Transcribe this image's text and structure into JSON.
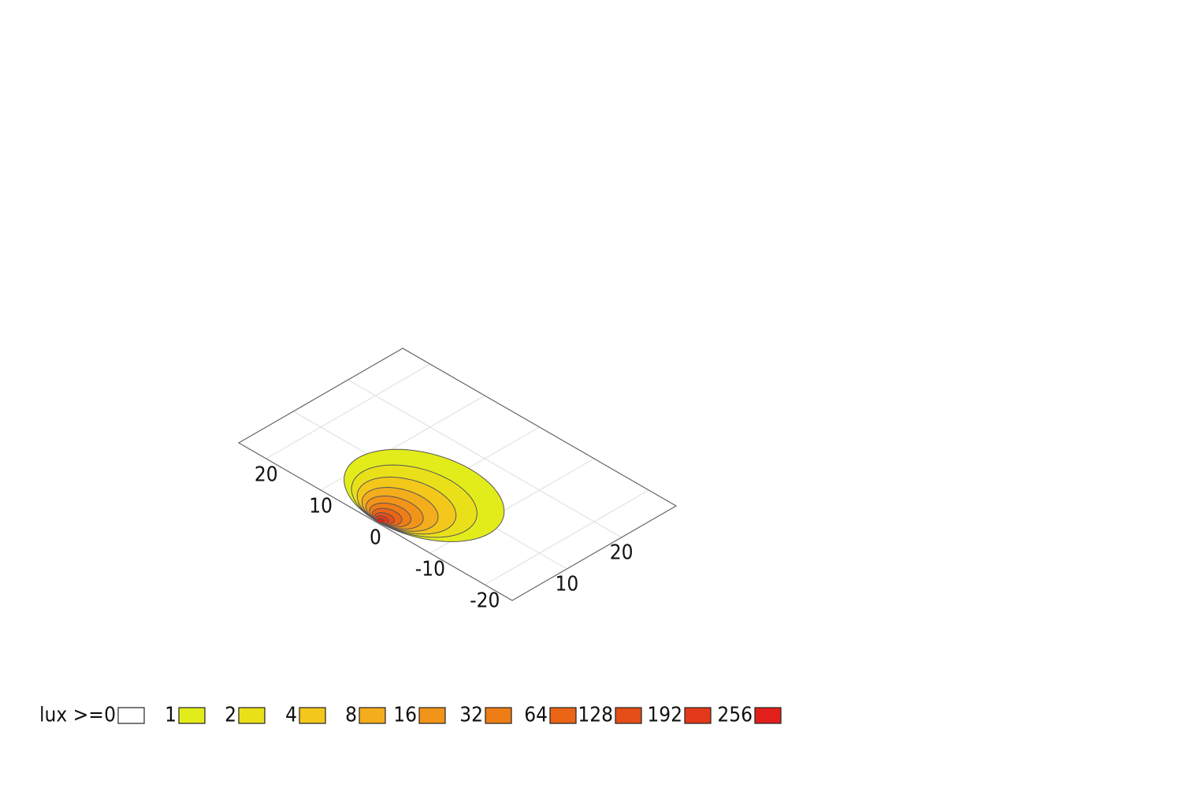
{
  "chart_data": {
    "type": "contour",
    "xlim": [
      0,
      30
    ],
    "ylim": [
      -25,
      25
    ],
    "xticks": [
      10,
      20
    ],
    "yticks": [
      -20,
      -10,
      0,
      10,
      20
    ],
    "grid": true,
    "legend_title": "lux >=",
    "levels": [
      {
        "value": 0,
        "color": "#ffffff"
      },
      {
        "value": 1,
        "color": "#e3ec1b",
        "region": {
          "cx": 8.6,
          "cy": -0.3,
          "rx": 8.4,
          "ry": 12
        }
      },
      {
        "value": 2,
        "color": "#eae01a",
        "region": {
          "cx": 6.8,
          "cy": -0.3,
          "rx": 6.6,
          "ry": 9.4
        }
      },
      {
        "value": 4,
        "color": "#f3c81a",
        "region": {
          "cx": 5.4,
          "cy": -0.3,
          "rx": 5.2,
          "ry": 7.4
        }
      },
      {
        "value": 8,
        "color": "#f4ad1c",
        "region": {
          "cx": 4.2,
          "cy": -0.3,
          "rx": 4,
          "ry": 5.7
        }
      },
      {
        "value": 16,
        "color": "#f2941a",
        "region": {
          "cx": 3.2,
          "cy": -0.3,
          "rx": 3,
          "ry": 4.3
        }
      },
      {
        "value": 32,
        "color": "#ee7d16",
        "region": {
          "cx": 2.4,
          "cy": -0.3,
          "rx": 2.2,
          "ry": 3.1
        }
      },
      {
        "value": 64,
        "color": "#ea6516",
        "region": {
          "cx": 1.8,
          "cy": -0.3,
          "rx": 1.6,
          "ry": 2.2
        }
      },
      {
        "value": 128,
        "color": "#e54e18",
        "region": {
          "cx": 1.3,
          "cy": -0.3,
          "rx": 1.1,
          "ry": 1.5
        }
      },
      {
        "value": 192,
        "color": "#e3391a",
        "region": {
          "cx": 0.9,
          "cy": -0.3,
          "rx": 0.7,
          "ry": 1
        }
      },
      {
        "value": 256,
        "color": "#e21f1a",
        "region": {
          "cx": 0.6,
          "cy": -0.3,
          "rx": 0.4,
          "ry": 0.55
        }
      }
    ]
  }
}
